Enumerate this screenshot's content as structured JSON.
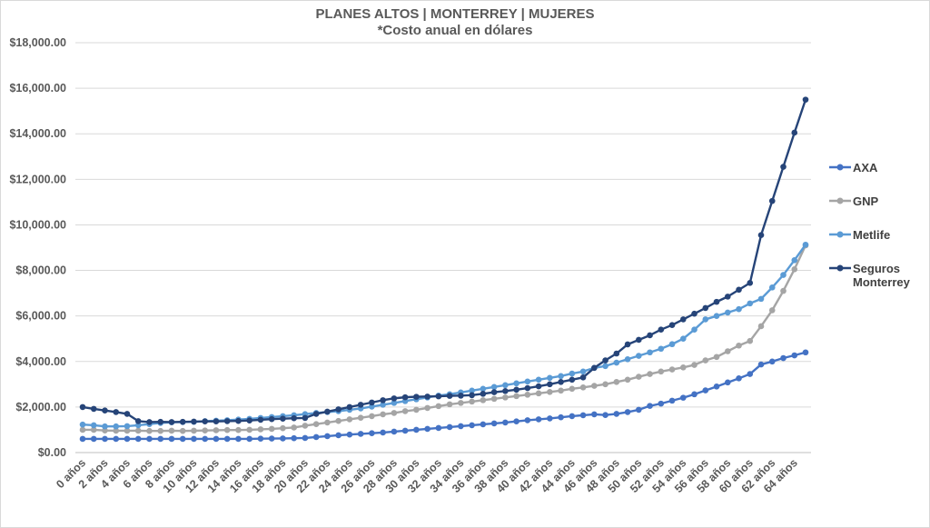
{
  "chart_data": {
    "type": "line",
    "title": "PLANES ALTOS | MONTERREY | MUJERES",
    "subtitle": "*Costo anual en dólares",
    "xlabel": "",
    "ylabel": "",
    "ylim": [
      0,
      18000
    ],
    "y_ticks": [
      "$0.00",
      "$2,000.00",
      "$4,000.00",
      "$6,000.00",
      "$8,000.00",
      "$10,000.00",
      "$12,000.00",
      "$14,000.00",
      "$16,000.00",
      "$18,000.00"
    ],
    "x_tick_labels": [
      "0 años",
      "2 años",
      "4 años",
      "6 años",
      "8 años",
      "10 años",
      "12 años",
      "14 años",
      "16 años",
      "18 años",
      "20 años",
      "22 años",
      "24 años",
      "26 años",
      "28 años",
      "30 años",
      "32 años",
      "34 años",
      "36 años",
      "38 años",
      "40 años",
      "42 años",
      "44 años",
      "46 años",
      "48 años",
      "50 años",
      "52 años",
      "54 años",
      "56 años",
      "58 años",
      "60 años",
      "62 años",
      "64 años"
    ],
    "x": [
      0,
      1,
      2,
      3,
      4,
      5,
      6,
      7,
      8,
      9,
      10,
      11,
      12,
      13,
      14,
      15,
      16,
      17,
      18,
      19,
      20,
      21,
      22,
      23,
      24,
      25,
      26,
      27,
      28,
      29,
      30,
      31,
      32,
      33,
      34,
      35,
      36,
      37,
      38,
      39,
      40,
      41,
      42,
      43,
      44,
      45,
      46,
      47,
      48,
      49,
      50,
      51,
      52,
      53,
      54,
      55,
      56,
      57,
      58,
      59,
      60,
      61,
      62,
      63,
      64,
      65
    ],
    "grid": true,
    "legend_position": "right",
    "series": [
      {
        "name": "AXA",
        "color": "#4472c4",
        "values": [
          600,
          600,
          600,
          600,
          600,
          600,
          600,
          600,
          600,
          600,
          600,
          600,
          600,
          600,
          600,
          600,
          610,
          615,
          620,
          630,
          640,
          680,
          720,
          760,
          790,
          820,
          850,
          880,
          920,
          960,
          1000,
          1040,
          1080,
          1120,
          1160,
          1200,
          1240,
          1280,
          1320,
          1370,
          1420,
          1460,
          1500,
          1550,
          1600,
          1640,
          1680,
          1650,
          1700,
          1780,
          1880,
          2050,
          2150,
          2280,
          2410,
          2560,
          2730,
          2900,
          3080,
          3260,
          3450,
          3870,
          4000,
          4150,
          4270,
          4400
        ]
      },
      {
        "name": "GNP",
        "color": "#a5a5a5",
        "values": [
          1000,
          1000,
          970,
          960,
          960,
          960,
          950,
          950,
          960,
          950,
          960,
          970,
          980,
          990,
          990,
          1000,
          1020,
          1040,
          1070,
          1100,
          1180,
          1250,
          1320,
          1390,
          1460,
          1530,
          1600,
          1680,
          1740,
          1820,
          1880,
          1960,
          2040,
          2120,
          2180,
          2240,
          2300,
          2360,
          2420,
          2480,
          2540,
          2600,
          2660,
          2720,
          2800,
          2860,
          2930,
          3000,
          3100,
          3200,
          3330,
          3450,
          3560,
          3650,
          3740,
          3850,
          4050,
          4200,
          4450,
          4700,
          4900,
          5550,
          6250,
          7100,
          8050,
          9100
        ]
      },
      {
        "name": "Metlife",
        "color": "#5b9bd5",
        "values": [
          1230,
          1200,
          1150,
          1150,
          1160,
          1200,
          1250,
          1300,
          1330,
          1340,
          1350,
          1380,
          1400,
          1420,
          1450,
          1480,
          1520,
          1560,
          1600,
          1640,
          1690,
          1740,
          1780,
          1820,
          1880,
          1940,
          2020,
          2100,
          2180,
          2260,
          2340,
          2420,
          2500,
          2560,
          2640,
          2720,
          2800,
          2880,
          2960,
          3040,
          3120,
          3200,
          3280,
          3360,
          3470,
          3560,
          3720,
          3800,
          3950,
          4100,
          4250,
          4400,
          4560,
          4760,
          5000,
          5400,
          5850,
          6000,
          6150,
          6300,
          6550,
          6750,
          7250,
          7800,
          8450,
          9130
        ]
      },
      {
        "name": "Seguros Monterrey",
        "color": "#264478",
        "values": [
          2000,
          1920,
          1850,
          1780,
          1700,
          1380,
          1340,
          1350,
          1340,
          1350,
          1360,
          1370,
          1370,
          1380,
          1390,
          1410,
          1440,
          1470,
          1490,
          1510,
          1520,
          1700,
          1800,
          1900,
          2000,
          2100,
          2200,
          2300,
          2380,
          2430,
          2450,
          2460,
          2470,
          2490,
          2500,
          2520,
          2580,
          2650,
          2700,
          2760,
          2830,
          2910,
          3000,
          3100,
          3200,
          3300,
          3720,
          4050,
          4350,
          4750,
          4950,
          5150,
          5400,
          5600,
          5850,
          6100,
          6350,
          6620,
          6850,
          7150,
          7450,
          9550,
          11050,
          12550,
          14050,
          15500
        ]
      }
    ]
  }
}
